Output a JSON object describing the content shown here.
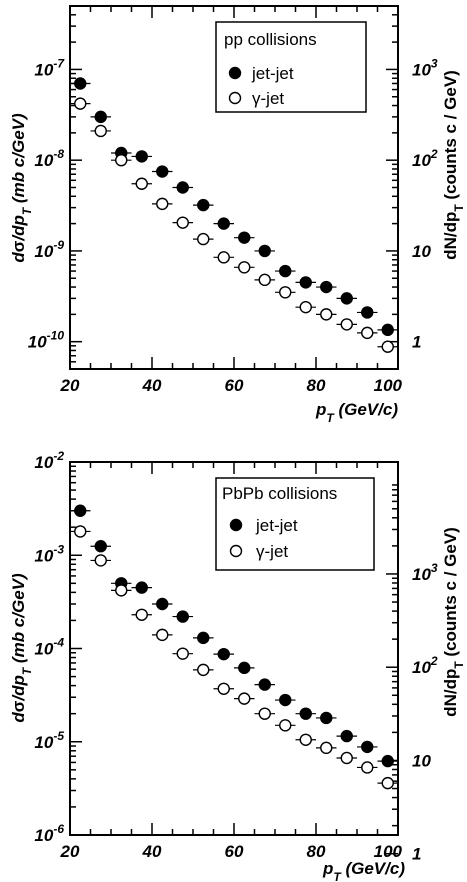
{
  "chart_data": [
    {
      "type": "scatter",
      "legend_title": "pp collisions",
      "legend_placement": "top-right",
      "xlabel": "p_T (GeV/c)",
      "ylabel": "dσ/dp_T (mb c/GeV)",
      "ylabel_right": "dN/dp_T (counts c / GeV)",
      "xlim": [
        20,
        100
      ],
      "ylim": [
        5e-11,
        5e-07
      ],
      "log_y": true,
      "grid": false,
      "x_ticks": [
        "20",
        "40",
        "60",
        "80",
        "100"
      ],
      "y_ticks": [
        {
          "value": 1e-07,
          "base": "10",
          "exp": "-7"
        },
        {
          "value": 1e-08,
          "base": "10",
          "exp": "-8"
        },
        {
          "value": 1e-09,
          "base": "10",
          "exp": "-9"
        },
        {
          "value": 1e-10,
          "base": "10",
          "exp": "-10"
        }
      ],
      "right_ticks": [
        {
          "value": 1e-07,
          "base": "10",
          "exp": "3"
        },
        {
          "value": 1e-08,
          "base": "10",
          "exp": "2"
        },
        {
          "value": 1e-09,
          "base": "10",
          "exp": ""
        },
        {
          "value": 1e-10,
          "base": "1",
          "exp": ""
        }
      ],
      "x": [
        22.5,
        27.5,
        32.5,
        37.5,
        42.5,
        47.5,
        52.5,
        57.5,
        62.5,
        67.5,
        72.5,
        77.5,
        82.5,
        87.5,
        92.5,
        97.5
      ],
      "series": [
        {
          "name": "jet-jet",
          "marker": "filled",
          "values": [
            7e-08,
            3e-08,
            1.2e-08,
            1.1e-08,
            7.5e-09,
            5e-09,
            3.2e-09,
            2e-09,
            1.4e-09,
            1e-09,
            6e-10,
            4.5e-10,
            4e-10,
            3e-10,
            2.1e-10,
            1.35e-10
          ]
        },
        {
          "name": "γ-jet",
          "marker": "open",
          "values": [
            4.2e-08,
            2.1e-08,
            1e-08,
            5.5e-09,
            3.3e-09,
            2.05e-09,
            1.35e-09,
            8.5e-10,
            6.6e-10,
            4.8e-10,
            3.5e-10,
            2.4e-10,
            2e-10,
            1.55e-10,
            1.25e-10,
            8.8e-11
          ]
        }
      ]
    },
    {
      "type": "scatter",
      "legend_title": "PbPb collisions",
      "legend_placement": "top-right",
      "xlabel": "p_T (GeV/c)",
      "ylabel": "dσ/dp_T (mb c/GeV)",
      "ylabel_right": "dN/dp_T (counts c / GeV)",
      "xlim": [
        20,
        100
      ],
      "ylim": [
        1e-06,
        0.01
      ],
      "log_y": true,
      "grid": false,
      "x_ticks": [
        "20",
        "40",
        "60",
        "80",
        "100"
      ],
      "y_ticks": [
        {
          "value": 0.01,
          "base": "10",
          "exp": "-2"
        },
        {
          "value": 0.001,
          "base": "10",
          "exp": "-3"
        },
        {
          "value": 0.0001,
          "base": "10",
          "exp": "-4"
        },
        {
          "value": 1e-05,
          "base": "10",
          "exp": "-5"
        },
        {
          "value": 1e-06,
          "base": "10",
          "exp": "-6"
        }
      ],
      "right_ticks": [
        {
          "value": 0.00063,
          "base": "10",
          "exp": "3"
        },
        {
          "value": 6.3e-05,
          "base": "10",
          "exp": "2"
        },
        {
          "value": 6.3e-06,
          "base": "10",
          "exp": ""
        },
        {
          "value": 6.3e-07,
          "base": "1",
          "exp": ""
        }
      ],
      "x": [
        22.5,
        27.5,
        32.5,
        37.5,
        42.5,
        47.5,
        52.5,
        57.5,
        62.5,
        67.5,
        72.5,
        77.5,
        82.5,
        87.5,
        92.5,
        97.5
      ],
      "series": [
        {
          "name": "jet-jet",
          "marker": "filled",
          "values": [
            0.003,
            0.00125,
            0.0005,
            0.00045,
            0.0003,
            0.00022,
            0.00013,
            8.7e-05,
            6.2e-05,
            4.1e-05,
            2.8e-05,
            2e-05,
            1.8e-05,
            1.15e-05,
            8.8e-06,
            6.2e-06
          ]
        },
        {
          "name": "γ-jet",
          "marker": "open",
          "values": [
            0.0018,
            0.00088,
            0.00042,
            0.00023,
            0.00014,
            8.8e-05,
            5.9e-05,
            3.7e-05,
            2.9e-05,
            2e-05,
            1.5e-05,
            1.05e-05,
            8.6e-06,
            6.7e-06,
            5.3e-06,
            3.6e-06
          ]
        }
      ]
    }
  ]
}
